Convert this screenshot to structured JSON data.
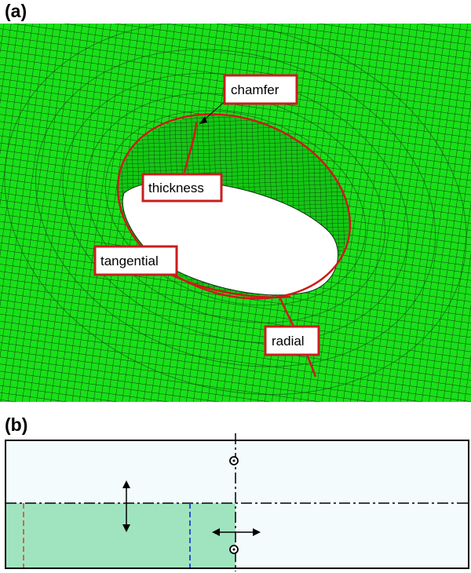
{
  "panels": {
    "a": {
      "label": "(a)"
    },
    "b": {
      "label": "(b)"
    }
  },
  "callouts": {
    "chamfer": "chamfer",
    "thickness": "thickness",
    "tangential": "tangential",
    "radial": "radial"
  },
  "colors": {
    "mesh_fill": "#19e019",
    "mesh_lines": "#0f3a0f",
    "path": "#cc1a1a",
    "callout_border": "#c81e1e",
    "hole": "#ffffff",
    "section_fill": "#9fe4bf",
    "section_bg": "#f3fbfd",
    "red_dash": "#e05050",
    "blue_dash": "#2040d0"
  },
  "icons": [
    "vertical-double-arrow-icon",
    "horizontal-double-arrow-icon",
    "circle-dot-icon"
  ]
}
